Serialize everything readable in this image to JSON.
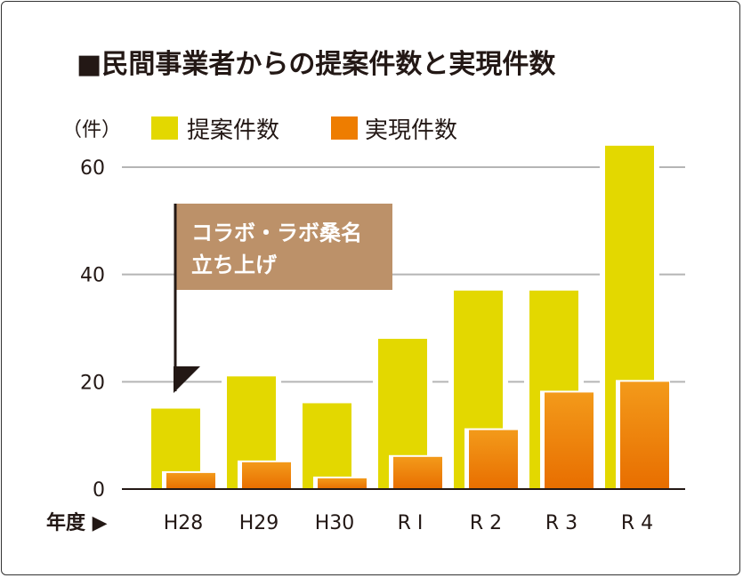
{
  "chart_data": {
    "type": "bar",
    "title": "■民間事業者からの提案件数と実現件数",
    "ylabel": "（件）",
    "xlabel": "年度 ▶",
    "categories": [
      "H28",
      "H29",
      "H30",
      "R I",
      "R 2",
      "R 3",
      "R 4"
    ],
    "series": [
      {
        "name": "提案件数",
        "color": "#e3d800",
        "values": [
          15,
          21,
          16,
          28,
          37,
          37,
          64
        ]
      },
      {
        "name": "実現件数",
        "color": "#ee7d00",
        "values": [
          3,
          5,
          2,
          6,
          11,
          18,
          20
        ]
      }
    ],
    "ylim": [
      0,
      65
    ],
    "yticks": [
      0,
      20,
      40,
      60
    ],
    "grid": true,
    "legend": "top",
    "annotation": {
      "lines": [
        "コラボ・ラボ桑名",
        "立ち上げ"
      ],
      "target": "H28",
      "color": "#bc9169"
    }
  }
}
